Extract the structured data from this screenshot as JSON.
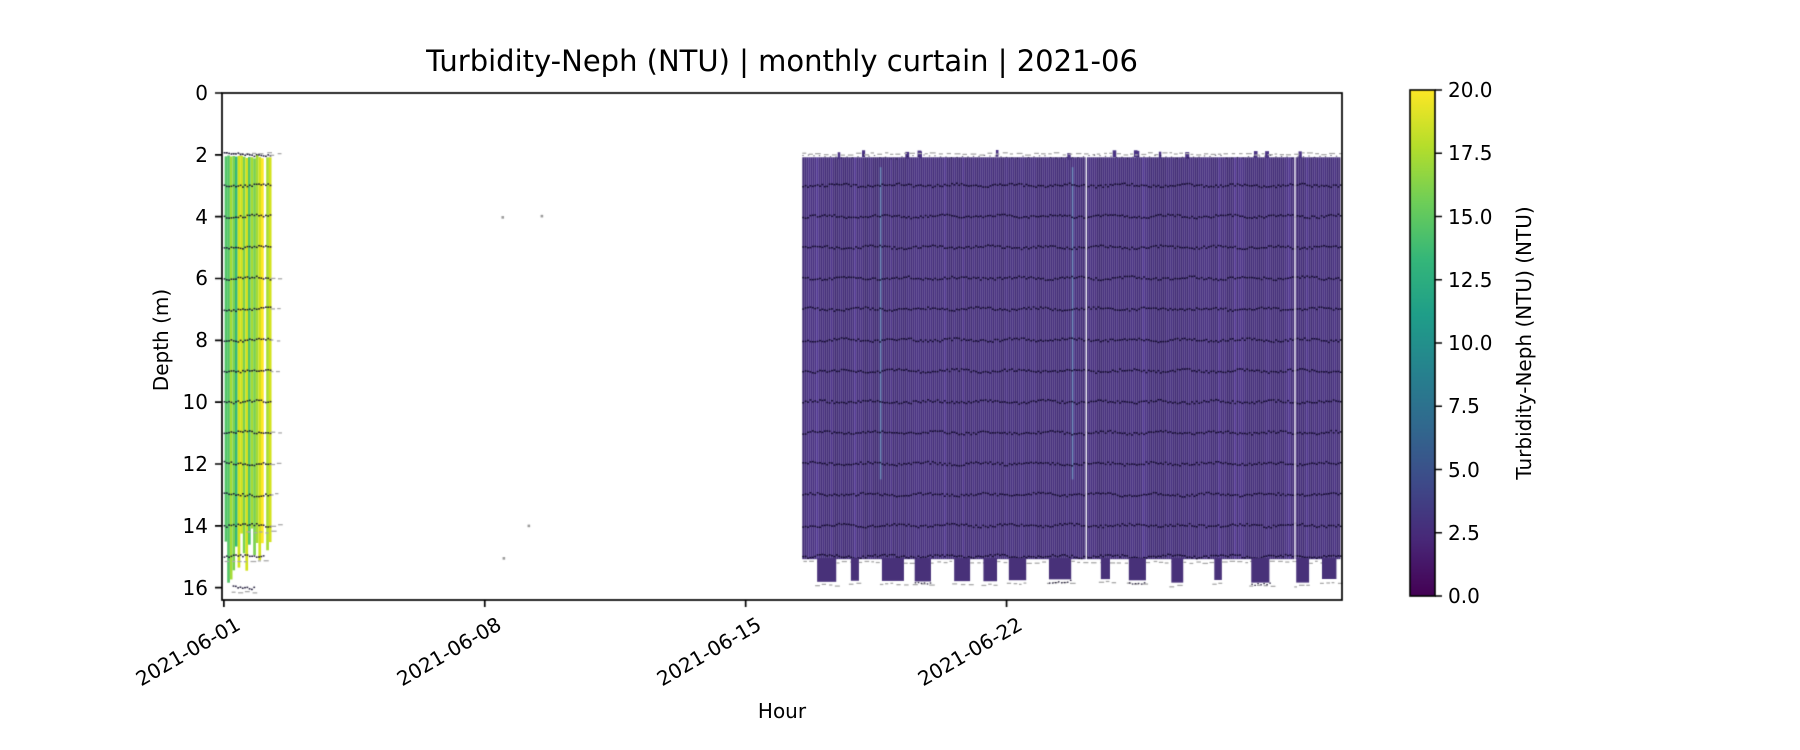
{
  "figure": {
    "background_color": "#ffffff",
    "description": "Matplotlib-style monthly curtain heatmap of turbidity profiler data"
  },
  "chart_data": {
    "type": "heatmap",
    "title": "Turbidity-Neph (NTU) | monthly curtain | 2021-06",
    "xlabel": "Hour",
    "ylabel": "Depth (m)",
    "x_tick_labels": [
      "2021-06-01",
      "2021-06-08",
      "2021-06-15",
      "2021-06-22"
    ],
    "x_tick_days": [
      0,
      7,
      14,
      21
    ],
    "x_range_days": [
      -0.05,
      30.0
    ],
    "x_tick_rotation_deg": 30,
    "y_tick_labels": [
      "0",
      "2",
      "4",
      "6",
      "8",
      "10",
      "12",
      "14",
      "16"
    ],
    "y_ticks": [
      0,
      2,
      4,
      6,
      8,
      10,
      12,
      14,
      16
    ],
    "y_range": [
      16.4,
      0
    ],
    "grid": false,
    "legend": "none",
    "colorbar": {
      "label": "Turbidity-Neph (NTU) (NTU)",
      "tick_labels": [
        "20.0",
        "17.5",
        "15.0",
        "12.5",
        "10.0",
        "7.5",
        "5.0",
        "2.5",
        "0.0"
      ],
      "ticks": [
        20.0,
        17.5,
        15.0,
        12.5,
        10.0,
        7.5,
        5.0,
        2.5,
        0.0
      ],
      "vmin": 0.0,
      "vmax": 20.0,
      "colormap": "viridis",
      "colormap_stops": [
        "#440154",
        "#482878",
        "#3e4a89",
        "#31688e",
        "#26828e",
        "#1f9e89",
        "#35b779",
        "#6ece58",
        "#b5de2b",
        "#fde725"
      ]
    },
    "segments": [
      {
        "name": "deployment-early-june",
        "start_day": 0.02,
        "end_day": 1.22,
        "depth_top_m": 2.0,
        "depth_bottom_m": 16.1,
        "value_range_ntu": [
          12,
          20
        ],
        "palette": [
          "#fde725",
          "#d2e21b",
          "#a5db36",
          "#7ad151",
          "#54c568",
          "#35b779",
          "#22a884",
          "#1f9e89",
          "#2a788e"
        ],
        "palette_weights": [
          0.1,
          0.19,
          0.21,
          0.18,
          0.1,
          0.08,
          0.07,
          0.04,
          0.03
        ]
      },
      {
        "name": "deployment-mid-late-june",
        "start_day": 15.52,
        "end_day": 29.95,
        "depth_top_m": 2.08,
        "depth_bottom_m": 15.08,
        "tongue_bottom_m": 15.84,
        "value_range_ntu": [
          0.5,
          2.5
        ],
        "base_color": "#46307c",
        "light_streak_days": [
          17.6,
          22.75
        ],
        "gap_hairline_days": [
          23.12,
          28.72
        ]
      }
    ],
    "scatter_points": [
      {
        "day": 7.48,
        "depth_m": 4.02
      },
      {
        "day": 8.53,
        "depth_m": 3.98
      },
      {
        "day": 8.18,
        "depth_m": 14.0
      },
      {
        "day": 7.51,
        "depth_m": 15.05
      }
    ],
    "sensor_row_depths_m": [
      2,
      3,
      4,
      5,
      6,
      7,
      8,
      9,
      10,
      11,
      12,
      13,
      14,
      15,
      16
    ],
    "sensor_marker_color": "#150b30",
    "envelope_color": "#a9a9a9",
    "scatter_color": "#9b9b9b"
  }
}
